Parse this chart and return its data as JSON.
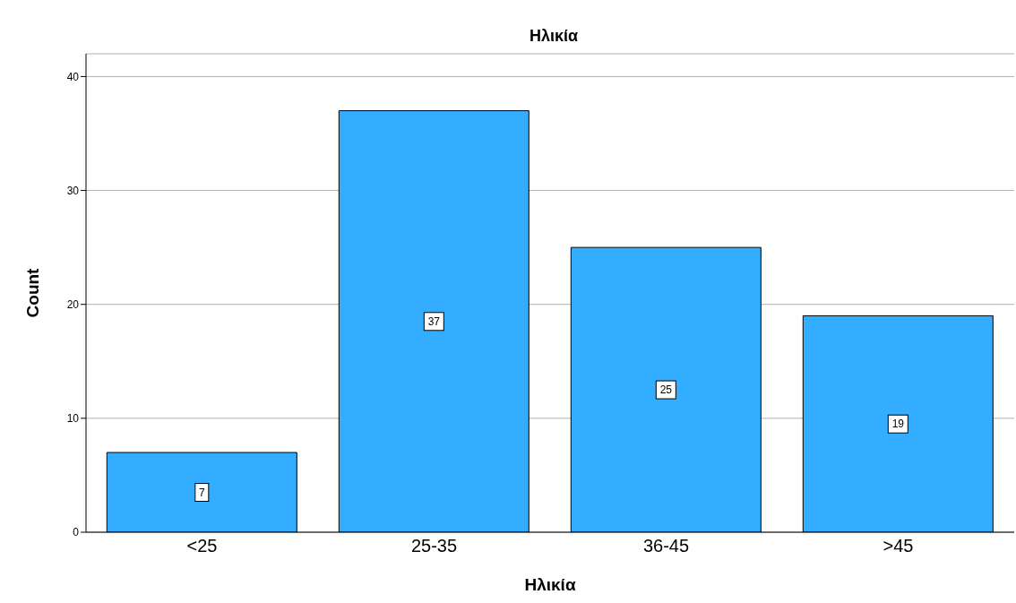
{
  "chart_data": {
    "type": "bar",
    "title": "Ηλικία",
    "xlabel": "Ηλικία",
    "ylabel": "Count",
    "categories": [
      "<25",
      "25-35",
      "36-45",
      ">45"
    ],
    "values": [
      7,
      37,
      25,
      19
    ],
    "color": "#33adff",
    "ylim": [
      0,
      42
    ],
    "yticks": [
      0,
      10,
      20,
      30,
      40
    ],
    "grid": "y",
    "data_labels": true
  }
}
